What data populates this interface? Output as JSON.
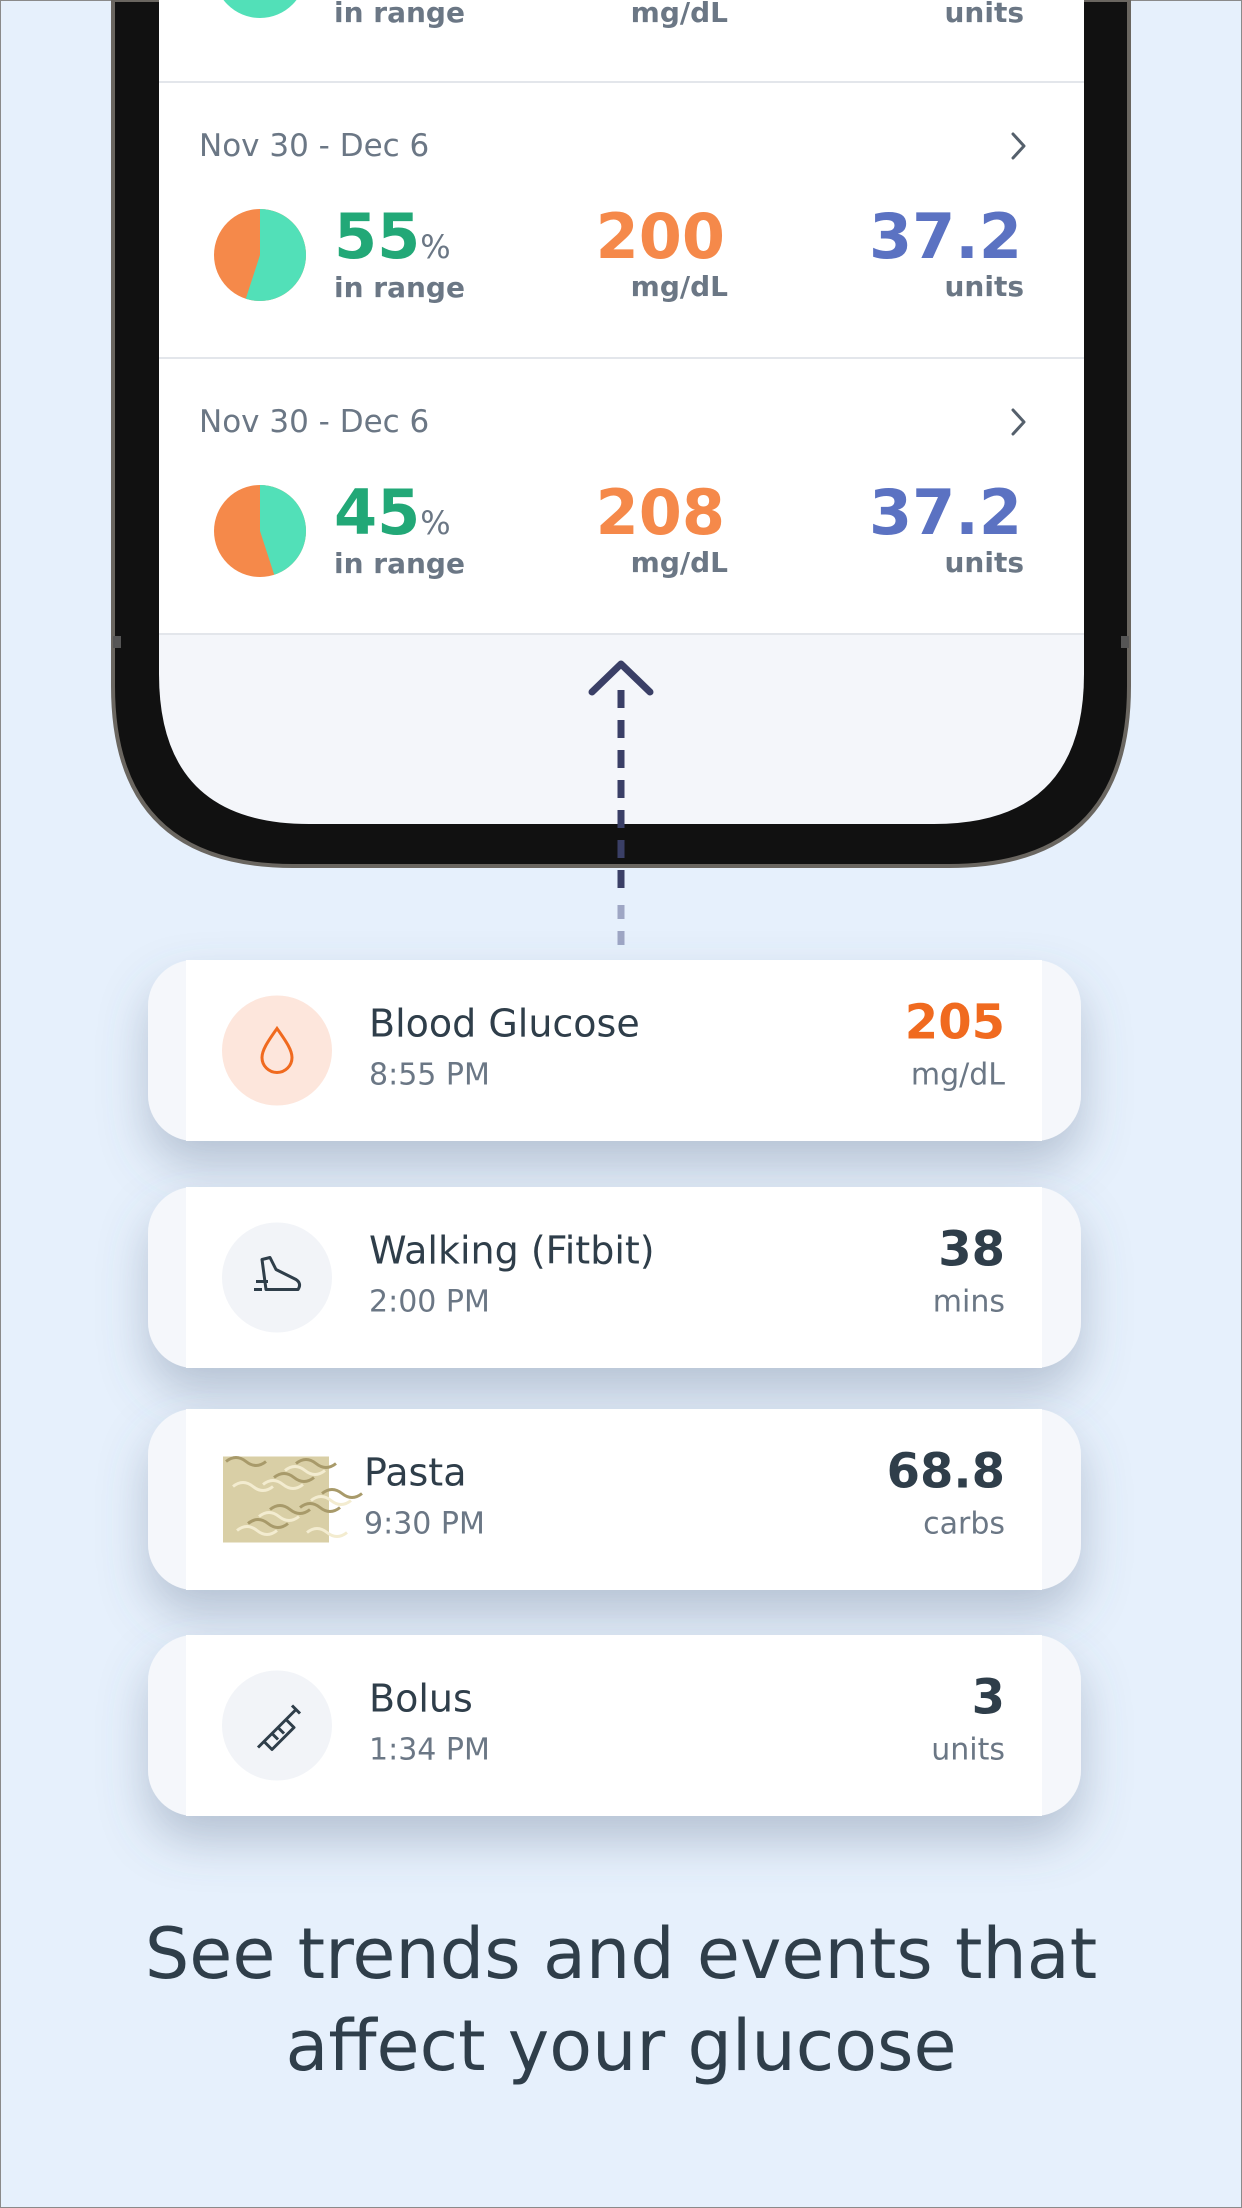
{
  "summary": {
    "top_row": {
      "in_range_label": "in range",
      "glucose_unit": "mg/dL",
      "insulin_unit": "units"
    },
    "weeks": [
      {
        "date": "Nov 30 - Dec 6",
        "in_range": 55,
        "percent_sign": "%",
        "in_range_label": "in range",
        "glucose": 200,
        "glucose_unit": "mg/dL",
        "insulin": 37.2,
        "insulin_unit": "units"
      },
      {
        "date": "Nov 30 - Dec 6",
        "in_range": 45,
        "percent_sign": "%",
        "in_range_label": "in range",
        "glucose": 208,
        "glucose_unit": "mg/dL",
        "insulin": 37.2,
        "insulin_unit": "units"
      }
    ]
  },
  "events": [
    {
      "title": "Blood Glucose",
      "time": "8:55 PM",
      "value": 205,
      "unit": "mg/dL"
    },
    {
      "title": "Walking (Fitbit)",
      "time": "2:00 PM",
      "value": 38,
      "unit": "mins"
    },
    {
      "title": "Pasta",
      "time": "9:30 PM",
      "value": 68.8,
      "unit": "carbs"
    },
    {
      "title": "Bolus",
      "time": "1:34 PM",
      "value": 3,
      "unit": "units"
    }
  ],
  "caption": [
    "See trends and events that",
    "affect your glucose"
  ]
}
